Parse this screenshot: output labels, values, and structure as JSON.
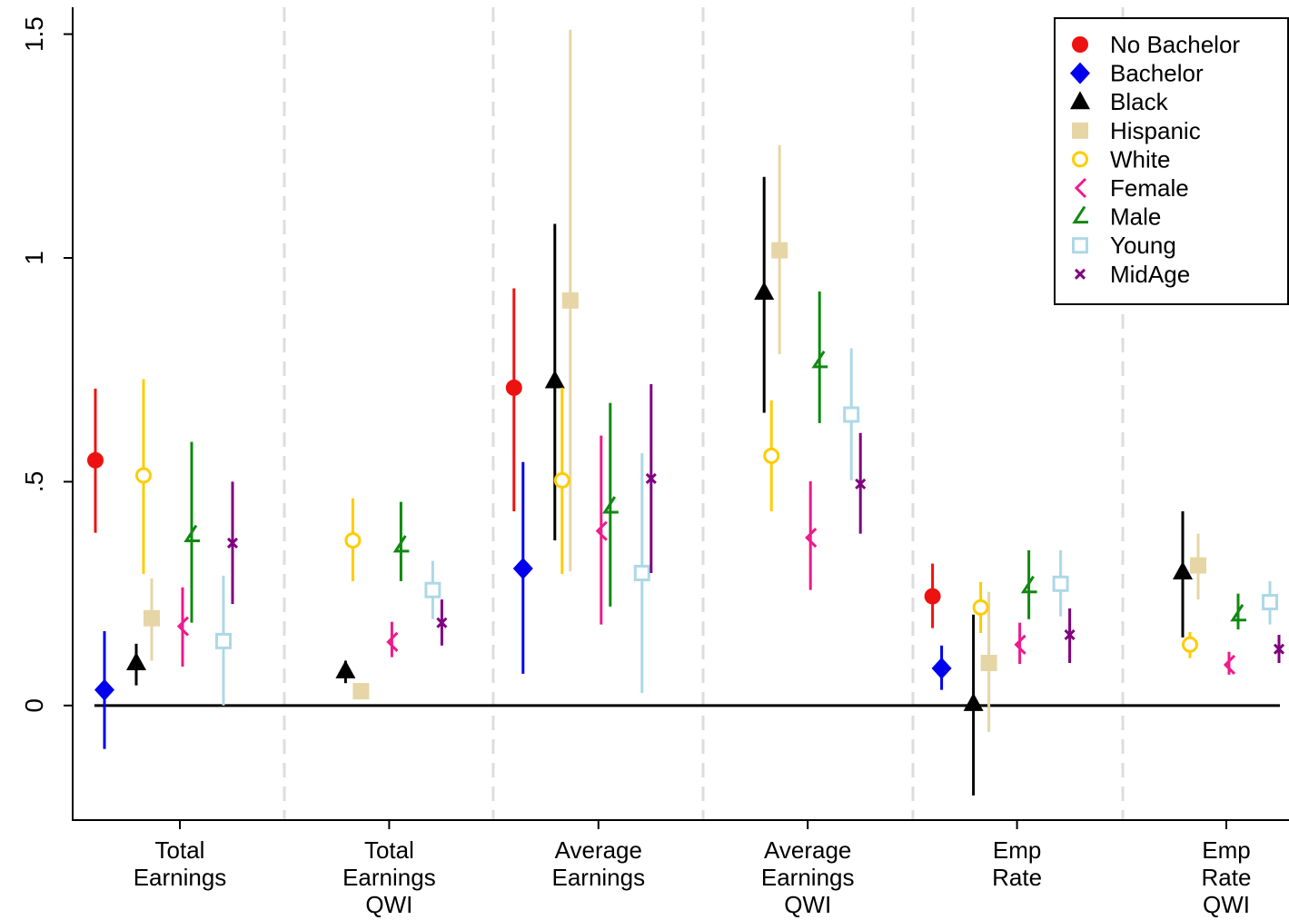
{
  "chart_data": {
    "type": "errorbar",
    "categories": [
      [
        "Total",
        "Earnings"
      ],
      [
        "Total",
        "Earnings",
        "QWI"
      ],
      [
        "Average",
        "Earnings"
      ],
      [
        "Average",
        "Earnings",
        "QWI"
      ],
      [
        "Emp",
        "Rate"
      ],
      [
        "Emp",
        "Rate",
        "QWI"
      ]
    ],
    "ylim": [
      -0.256,
      1.56
    ],
    "yticks": [
      0,
      {
        "value": 0.5,
        "label": ".5"
      },
      1,
      1.5
    ],
    "series": [
      {
        "name": "No Bachelor",
        "color": "#ee1111",
        "marker": "circle",
        "values": [
          0.548,
          null,
          0.71,
          null,
          0.244,
          null
        ],
        "lower": [
          0.386,
          null,
          0.434,
          null,
          0.173,
          null
        ],
        "upper": [
          0.708,
          null,
          0.932,
          null,
          0.317,
          null
        ]
      },
      {
        "name": "Bachelor",
        "color": "#0000ee",
        "marker": "diamond",
        "values": [
          0.035,
          null,
          0.306,
          null,
          0.083,
          null
        ],
        "lower": [
          -0.097,
          null,
          0.071,
          null,
          0.035,
          null
        ],
        "upper": [
          0.166,
          null,
          0.544,
          null,
          0.134,
          null
        ]
      },
      {
        "name": "Black",
        "color": "#000000",
        "marker": "triangle",
        "values": [
          0.095,
          0.077,
          0.725,
          0.923,
          0.004,
          0.298
        ],
        "lower": [
          0.045,
          0.05,
          0.369,
          0.654,
          -0.201,
          0.152
        ],
        "upper": [
          0.138,
          0.1,
          1.076,
          1.181,
          0.203,
          0.434
        ]
      },
      {
        "name": "Hispanic",
        "color": "#e6d6a6",
        "marker": "square",
        "values": [
          0.195,
          0.032,
          0.905,
          1.017,
          0.095,
          0.313
        ],
        "lower": [
          0.1,
          0.02,
          0.3,
          0.785,
          -0.059,
          0.237
        ],
        "upper": [
          0.284,
          0.045,
          1.51,
          1.252,
          0.254,
          0.384
        ]
      },
      {
        "name": "White",
        "color": "#ffcc00",
        "marker": "open-circle",
        "values": [
          0.514,
          0.369,
          0.503,
          0.558,
          0.219,
          0.136
        ],
        "lower": [
          0.294,
          0.278,
          0.294,
          0.434,
          0.162,
          0.106
        ],
        "upper": [
          0.729,
          0.463,
          0.71,
          0.682,
          0.276,
          0.164
        ]
      },
      {
        "name": "Female",
        "color": "#ee1a8c",
        "marker": "chevron",
        "values": [
          0.177,
          0.142,
          0.39,
          0.375,
          0.136,
          0.091
        ],
        "lower": [
          0.087,
          0.108,
          0.181,
          0.258,
          0.093,
          0.069
        ],
        "upper": [
          0.264,
          0.187,
          0.603,
          0.501,
          0.185,
          0.12
        ]
      },
      {
        "name": "Male",
        "color": "#118811",
        "marker": "angle",
        "values": [
          0.38,
          0.357,
          0.444,
          0.769,
          0.266,
          0.203
        ],
        "lower": [
          0.185,
          0.278,
          0.221,
          0.631,
          0.193,
          0.17
        ],
        "upper": [
          0.589,
          0.455,
          0.676,
          0.925,
          0.347,
          0.25
        ]
      },
      {
        "name": "Young",
        "color": "#add8e6",
        "marker": "open-square",
        "values": [
          0.144,
          0.258,
          0.296,
          0.65,
          0.272,
          0.231
        ],
        "lower": [
          0,
          0.193,
          0.028,
          0.503,
          0.199,
          0.181
        ],
        "upper": [
          0.29,
          0.323,
          0.564,
          0.798,
          0.347,
          0.278
        ]
      },
      {
        "name": "MidAge",
        "color": "#800080",
        "marker": "x",
        "values": [
          0.363,
          0.185,
          0.507,
          0.495,
          0.158,
          0.126
        ],
        "lower": [
          0.227,
          0.134,
          0.296,
          0.384,
          0.095,
          0.095
        ],
        "upper": [
          0.5,
          0.237,
          0.718,
          0.609,
          0.217,
          0.158
        ]
      }
    ]
  }
}
